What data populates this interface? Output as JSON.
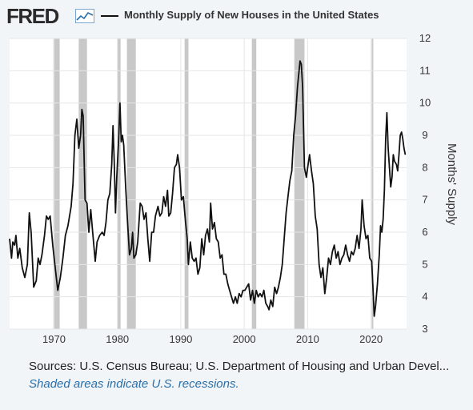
{
  "header": {
    "logo_text": "FRED",
    "logo_icon": "chart-line-icon",
    "title": "Monthly Supply of New Houses in the United States"
  },
  "footer": {
    "sources": "Sources: U.S. Census Bureau; U.S. Department of Housing and Urban Devel...",
    "note": "Shaded areas indicate U.S. recessions."
  },
  "colors": {
    "background": "#f2f5f8",
    "plot_background": "#ffffff",
    "line": "#111111",
    "recession": "#c8c8c8",
    "note": "#2b6fa8"
  },
  "chart_data": {
    "type": "line",
    "title": "Monthly Supply of New Houses in the United States",
    "xlabel": "",
    "ylabel": "Months' Supply",
    "xlim": [
      1963.0,
      2025.6
    ],
    "ylim": [
      3,
      12
    ],
    "x_ticks": [
      1970,
      1980,
      1990,
      2000,
      2010,
      2020
    ],
    "y_ticks": [
      3,
      4,
      5,
      6,
      7,
      8,
      9,
      10,
      11,
      12
    ],
    "y_axis_side": "right",
    "grid": true,
    "legend": "top",
    "recessions": [
      [
        1969.9,
        1970.9
      ],
      [
        1973.9,
        1975.2
      ],
      [
        1980.0,
        1980.5
      ],
      [
        1981.5,
        1982.9
      ],
      [
        1990.6,
        1991.2
      ],
      [
        2001.2,
        2001.9
      ],
      [
        2007.9,
        2009.5
      ],
      [
        2020.1,
        2020.3
      ]
    ],
    "series": [
      {
        "values": [
          [
            1963.0,
            5.8
          ],
          [
            1963.3,
            5.2
          ],
          [
            1963.5,
            5.7
          ],
          [
            1963.8,
            5.6
          ],
          [
            1964.0,
            5.9
          ],
          [
            1964.3,
            5.2
          ],
          [
            1964.6,
            5.5
          ],
          [
            1965.0,
            4.9
          ],
          [
            1965.4,
            4.6
          ],
          [
            1965.8,
            5.0
          ],
          [
            1966.1,
            6.6
          ],
          [
            1966.4,
            6.0
          ],
          [
            1966.8,
            4.3
          ],
          [
            1967.2,
            4.5
          ],
          [
            1967.5,
            5.2
          ],
          [
            1967.8,
            5.0
          ],
          [
            1968.1,
            5.3
          ],
          [
            1968.5,
            5.9
          ],
          [
            1968.8,
            6.5
          ],
          [
            1969.1,
            6.4
          ],
          [
            1969.4,
            6.5
          ],
          [
            1969.8,
            5.6
          ],
          [
            1970.2,
            4.9
          ],
          [
            1970.6,
            4.2
          ],
          [
            1971.0,
            4.6
          ],
          [
            1971.4,
            5.2
          ],
          [
            1971.8,
            5.9
          ],
          [
            1972.2,
            6.2
          ],
          [
            1972.7,
            6.8
          ],
          [
            1973.0,
            7.5
          ],
          [
            1973.3,
            9.0
          ],
          [
            1973.6,
            9.5
          ],
          [
            1973.9,
            8.6
          ],
          [
            1974.2,
            9.0
          ],
          [
            1974.4,
            9.8
          ],
          [
            1974.6,
            9.6
          ],
          [
            1974.9,
            7.0
          ],
          [
            1975.2,
            6.9
          ],
          [
            1975.5,
            6.0
          ],
          [
            1975.8,
            6.7
          ],
          [
            1976.1,
            6.0
          ],
          [
            1976.5,
            5.1
          ],
          [
            1976.8,
            5.7
          ],
          [
            1977.2,
            5.9
          ],
          [
            1977.6,
            6.0
          ],
          [
            1977.9,
            5.9
          ],
          [
            1978.2,
            6.3
          ],
          [
            1978.5,
            7.0
          ],
          [
            1978.8,
            7.2
          ],
          [
            1979.1,
            8.1
          ],
          [
            1979.3,
            9.3
          ],
          [
            1979.5,
            8.2
          ],
          [
            1979.7,
            6.6
          ],
          [
            1979.9,
            7.7
          ],
          [
            1980.2,
            8.9
          ],
          [
            1980.4,
            10.0
          ],
          [
            1980.6,
            8.8
          ],
          [
            1980.8,
            9.0
          ],
          [
            1981.0,
            8.7
          ],
          [
            1981.3,
            7.4
          ],
          [
            1981.6,
            6.3
          ],
          [
            1981.9,
            5.3
          ],
          [
            1982.2,
            5.5
          ],
          [
            1982.4,
            6.0
          ],
          [
            1982.6,
            5.2
          ],
          [
            1982.9,
            5.3
          ],
          [
            1983.2,
            5.7
          ],
          [
            1983.6,
            6.9
          ],
          [
            1983.9,
            6.8
          ],
          [
            1984.2,
            6.4
          ],
          [
            1984.5,
            6.6
          ],
          [
            1984.8,
            5.8
          ],
          [
            1985.1,
            5.1
          ],
          [
            1985.4,
            6.0
          ],
          [
            1985.7,
            6.0
          ],
          [
            1986.0,
            6.5
          ],
          [
            1986.4,
            6.8
          ],
          [
            1986.7,
            6.5
          ],
          [
            1987.0,
            6.6
          ],
          [
            1987.3,
            7.1
          ],
          [
            1987.6,
            6.8
          ],
          [
            1987.9,
            7.3
          ],
          [
            1988.1,
            6.5
          ],
          [
            1988.4,
            6.6
          ],
          [
            1988.7,
            7.2
          ],
          [
            1989.0,
            8.0
          ],
          [
            1989.3,
            8.1
          ],
          [
            1989.5,
            8.4
          ],
          [
            1989.8,
            8.0
          ],
          [
            1990.1,
            7.0
          ],
          [
            1990.4,
            7.1
          ],
          [
            1990.7,
            6.4
          ],
          [
            1991.0,
            5.8
          ],
          [
            1991.2,
            5.0
          ],
          [
            1991.5,
            5.7
          ],
          [
            1991.8,
            5.2
          ],
          [
            1992.1,
            5.1
          ],
          [
            1992.4,
            5.2
          ],
          [
            1992.7,
            4.7
          ],
          [
            1993.0,
            4.9
          ],
          [
            1993.3,
            5.8
          ],
          [
            1993.6,
            5.3
          ],
          [
            1993.9,
            5.9
          ],
          [
            1994.2,
            6.1
          ],
          [
            1994.5,
            5.7
          ],
          [
            1994.7,
            6.9
          ],
          [
            1995.0,
            6.1
          ],
          [
            1995.3,
            6.3
          ],
          [
            1995.6,
            5.8
          ],
          [
            1995.9,
            5.7
          ],
          [
            1996.2,
            5.2
          ],
          [
            1996.5,
            5.3
          ],
          [
            1996.8,
            4.7
          ],
          [
            1997.1,
            4.7
          ],
          [
            1997.4,
            4.4
          ],
          [
            1997.7,
            4.2
          ],
          [
            1998.0,
            4.0
          ],
          [
            1998.3,
            3.8
          ],
          [
            1998.6,
            4.0
          ],
          [
            1998.9,
            3.8
          ],
          [
            1999.2,
            4.1
          ],
          [
            1999.5,
            4.0
          ],
          [
            1999.8,
            4.2
          ],
          [
            2000.1,
            4.2
          ],
          [
            2000.4,
            4.3
          ],
          [
            2000.7,
            4.4
          ],
          [
            2001.0,
            3.9
          ],
          [
            2001.3,
            4.2
          ],
          [
            2001.6,
            3.8
          ],
          [
            2001.9,
            4.2
          ],
          [
            2002.2,
            4.0
          ],
          [
            2002.5,
            4.1
          ],
          [
            2002.8,
            4.0
          ],
          [
            2003.1,
            4.2
          ],
          [
            2003.4,
            3.8
          ],
          [
            2003.7,
            3.7
          ],
          [
            2003.9,
            3.6
          ],
          [
            2004.2,
            3.9
          ],
          [
            2004.5,
            3.7
          ],
          [
            2004.8,
            4.3
          ],
          [
            2005.1,
            4.1
          ],
          [
            2005.4,
            4.3
          ],
          [
            2005.7,
            4.6
          ],
          [
            2006.0,
            5.0
          ],
          [
            2006.3,
            5.8
          ],
          [
            2006.6,
            6.6
          ],
          [
            2006.9,
            7.1
          ],
          [
            2007.2,
            7.6
          ],
          [
            2007.5,
            7.9
          ],
          [
            2007.8,
            9.0
          ],
          [
            2008.1,
            9.6
          ],
          [
            2008.4,
            10.5
          ],
          [
            2008.6,
            10.9
          ],
          [
            2008.8,
            11.3
          ],
          [
            2009.0,
            11.2
          ],
          [
            2009.2,
            10.5
          ],
          [
            2009.5,
            8.0
          ],
          [
            2009.8,
            7.7
          ],
          [
            2010.0,
            8.0
          ],
          [
            2010.3,
            8.4
          ],
          [
            2010.6,
            7.9
          ],
          [
            2010.9,
            7.5
          ],
          [
            2011.2,
            6.5
          ],
          [
            2011.5,
            6.1
          ],
          [
            2011.8,
            5.0
          ],
          [
            2012.1,
            4.6
          ],
          [
            2012.4,
            4.9
          ],
          [
            2012.7,
            4.1
          ],
          [
            2013.0,
            4.6
          ],
          [
            2013.3,
            5.2
          ],
          [
            2013.6,
            5.0
          ],
          [
            2013.9,
            5.4
          ],
          [
            2014.2,
            5.6
          ],
          [
            2014.5,
            5.2
          ],
          [
            2014.8,
            5.4
          ],
          [
            2015.1,
            5.0
          ],
          [
            2015.4,
            5.2
          ],
          [
            2015.7,
            5.3
          ],
          [
            2016.0,
            5.6
          ],
          [
            2016.3,
            5.3
          ],
          [
            2016.6,
            5.1
          ],
          [
            2016.9,
            5.4
          ],
          [
            2017.2,
            5.3
          ],
          [
            2017.5,
            5.5
          ],
          [
            2017.8,
            5.9
          ],
          [
            2018.1,
            5.5
          ],
          [
            2018.4,
            6.1
          ],
          [
            2018.6,
            7.0
          ],
          [
            2018.9,
            6.2
          ],
          [
            2019.2,
            5.8
          ],
          [
            2019.5,
            5.9
          ],
          [
            2019.8,
            5.2
          ],
          [
            2020.1,
            5.1
          ],
          [
            2020.3,
            4.3
          ],
          [
            2020.5,
            3.4
          ],
          [
            2020.7,
            3.7
          ],
          [
            2021.0,
            4.4
          ],
          [
            2021.3,
            5.3
          ],
          [
            2021.5,
            6.2
          ],
          [
            2021.7,
            6.0
          ],
          [
            2021.9,
            6.4
          ],
          [
            2022.1,
            7.3
          ],
          [
            2022.3,
            8.9
          ],
          [
            2022.5,
            9.7
          ],
          [
            2022.7,
            8.6
          ],
          [
            2022.9,
            8.0
          ],
          [
            2023.1,
            7.4
          ],
          [
            2023.3,
            7.7
          ],
          [
            2023.5,
            8.4
          ],
          [
            2023.7,
            8.2
          ],
          [
            2024.0,
            8.1
          ],
          [
            2024.2,
            7.9
          ],
          [
            2024.4,
            8.4
          ],
          [
            2024.6,
            9.0
          ],
          [
            2024.8,
            9.1
          ],
          [
            2025.0,
            8.9
          ],
          [
            2025.2,
            8.6
          ],
          [
            2025.4,
            8.4
          ]
        ]
      }
    ]
  }
}
